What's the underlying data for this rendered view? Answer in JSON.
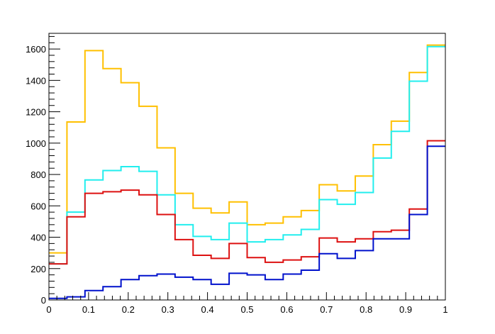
{
  "chart_data": {
    "type": "line",
    "step": true,
    "title": "",
    "xlabel": "",
    "ylabel": "",
    "xlim": [
      0,
      1
    ],
    "ylim": [
      0,
      1700
    ],
    "grid": false,
    "legend": "none",
    "bin_edges": [
      0,
      0.04545,
      0.09091,
      0.13636,
      0.18182,
      0.22727,
      0.27273,
      0.31818,
      0.36364,
      0.40909,
      0.45455,
      0.5,
      0.54545,
      0.59091,
      0.63636,
      0.68182,
      0.72727,
      0.77273,
      0.81818,
      0.86364,
      0.90909,
      0.95455,
      1.0
    ],
    "x_ticks": [
      {
        "value": 0,
        "label": "0"
      },
      {
        "value": 0.1,
        "label": "0.1"
      },
      {
        "value": 0.2,
        "label": "0.2"
      },
      {
        "value": 0.3,
        "label": "0.3"
      },
      {
        "value": 0.4,
        "label": "0.4"
      },
      {
        "value": 0.5,
        "label": "0.5"
      },
      {
        "value": 0.6,
        "label": "0.6"
      },
      {
        "value": 0.7,
        "label": "0.7"
      },
      {
        "value": 0.8,
        "label": "0.8"
      },
      {
        "value": 0.9,
        "label": "0.9"
      },
      {
        "value": 1,
        "label": "1"
      }
    ],
    "y_ticks": [
      {
        "value": 0,
        "label": "0"
      },
      {
        "value": 200,
        "label": "200"
      },
      {
        "value": 400,
        "label": "400"
      },
      {
        "value": 600,
        "label": "600"
      },
      {
        "value": 800,
        "label": "800"
      },
      {
        "value": 1000,
        "label": "1000"
      },
      {
        "value": 1200,
        "label": "1200"
      },
      {
        "value": 1400,
        "label": "1400"
      },
      {
        "value": 1600,
        "label": "1600"
      }
    ],
    "series": [
      {
        "color": "#ffc000",
        "values": [
          300,
          1135,
          1590,
          1475,
          1385,
          1235,
          970,
          680,
          585,
          555,
          625,
          480,
          490,
          530,
          570,
          735,
          695,
          790,
          990,
          1140,
          1450,
          1625
        ]
      },
      {
        "color": "#22eeee",
        "values": [
          230,
          560,
          765,
          825,
          850,
          820,
          670,
          480,
          405,
          385,
          490,
          370,
          385,
          415,
          450,
          640,
          610,
          685,
          905,
          1075,
          1395,
          1615
        ]
      },
      {
        "color": "#dd1111",
        "values": [
          230,
          530,
          680,
          690,
          700,
          670,
          545,
          385,
          285,
          265,
          360,
          270,
          240,
          255,
          275,
          395,
          370,
          390,
          435,
          445,
          580,
          1015
        ]
      },
      {
        "color": "#0011cc",
        "values": [
          10,
          20,
          60,
          85,
          130,
          155,
          165,
          145,
          130,
          100,
          170,
          160,
          130,
          165,
          190,
          295,
          265,
          315,
          390,
          390,
          545,
          980
        ]
      }
    ]
  }
}
